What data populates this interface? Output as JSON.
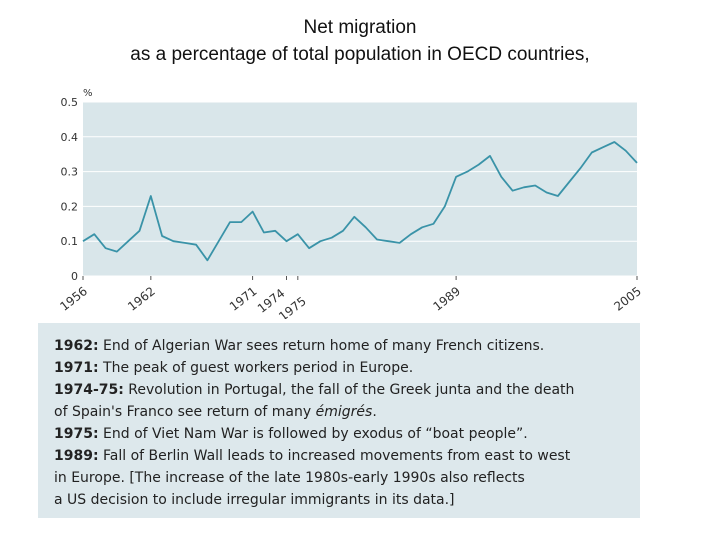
{
  "title_line1": "Net migration",
  "title_line2": "as a percentage of total population in OECD countries,",
  "chart_data": {
    "type": "line",
    "ylabel": "%",
    "ylim": [
      0,
      0.5
    ],
    "yticks": [
      "0",
      "0.1",
      "0.2",
      "0.3",
      "0.4",
      "0.5"
    ],
    "xlim": [
      1956,
      2005
    ],
    "xtick_labels": [
      {
        "label": "1956",
        "x": 1956
      },
      {
        "label": "1962",
        "x": 1962
      },
      {
        "label": "1971",
        "x": 1971
      },
      {
        "label": "1974",
        "x": 1974
      },
      {
        "label": "1975",
        "x": 1975
      },
      {
        "label": "1989",
        "x": 1989
      },
      {
        "label": "2005",
        "x": 2005
      }
    ],
    "grid": true,
    "background_color": "#d9e6ea",
    "line_color": "#3a93a8",
    "series": [
      {
        "x": [
          1956,
          1957,
          1958,
          1959,
          1960,
          1961,
          1962,
          1963,
          1964,
          1965,
          1966,
          1967,
          1968,
          1969,
          1970,
          1971,
          1972,
          1973,
          1974,
          1975,
          1976,
          1977,
          1978,
          1979,
          1980,
          1981,
          1982,
          1983,
          1984,
          1985,
          1986,
          1987,
          1988,
          1989,
          1990,
          1991,
          1992,
          1993,
          1994,
          1995,
          1996,
          1997,
          1998,
          1999,
          2000,
          2001,
          2002,
          2003,
          2004,
          2005
        ],
        "y": [
          0.1,
          0.12,
          0.08,
          0.07,
          0.1,
          0.13,
          0.23,
          0.115,
          0.1,
          0.095,
          0.09,
          0.045,
          0.1,
          0.155,
          0.155,
          0.185,
          0.125,
          0.13,
          0.1,
          0.12,
          0.08,
          0.1,
          0.11,
          0.13,
          0.17,
          0.14,
          0.105,
          0.1,
          0.095,
          0.12,
          0.14,
          0.15,
          0.2,
          0.285,
          0.3,
          0.32,
          0.345,
          0.285,
          0.245,
          0.255,
          0.26,
          0.24,
          0.23,
          0.27,
          0.31,
          0.355,
          0.37,
          0.385,
          0.36,
          0.325
        ]
      }
    ]
  },
  "notes": [
    {
      "bold": "1962:",
      "text": " End of Algerian War sees return home of many French citizens."
    },
    {
      "bold": "1971:",
      "text": " The peak of guest workers period in Europe."
    },
    {
      "bold": "1974-75:",
      "text": " Revolution in Portugal, the fall of the Greek junta and the death",
      "cont": "of Spain's Franco see return of many ",
      "cont_italic": "émigrés",
      "cont_end": "."
    },
    {
      "bold": "1975:",
      "text": " End of Viet Nam War is followed by exodus of “boat people”."
    },
    {
      "bold": "1989:",
      "text": " Fall of Berlin Wall leads to increased movements from east to west",
      "cont": "in Europe. [The increase of the late 1980s-early 1990s also reflects",
      "cont2": "a US decision to include irregular immigrants in its data.]"
    }
  ]
}
